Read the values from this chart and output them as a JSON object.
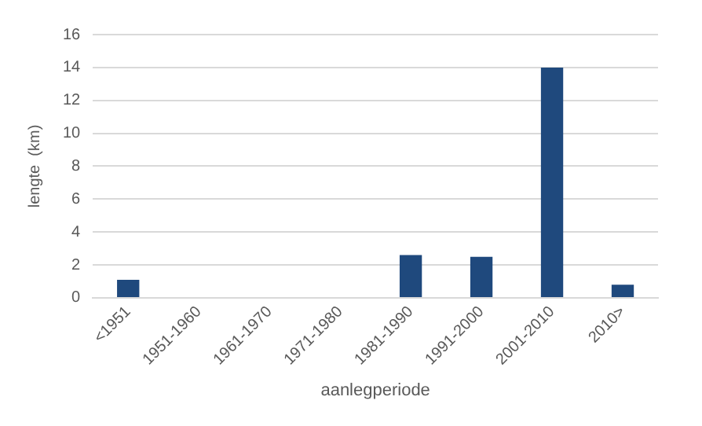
{
  "chart_data": {
    "type": "bar",
    "xlabel": "aanlegperiode",
    "ylabel": "lengte  (km)",
    "categories": [
      "<1951",
      "1951-1960",
      "1961-1970",
      "1971-1980",
      "1981-1990",
      "1991-2000",
      "2001-2010",
      "2010>"
    ],
    "values": [
      1.1,
      0,
      0,
      0,
      2.6,
      2.5,
      14,
      0.8
    ],
    "color": "#1f497d",
    "ylim": [
      0,
      16
    ],
    "yticks": [
      0,
      2,
      4,
      6,
      8,
      10,
      12,
      14,
      16
    ],
    "grid": "y",
    "legend": false
  }
}
